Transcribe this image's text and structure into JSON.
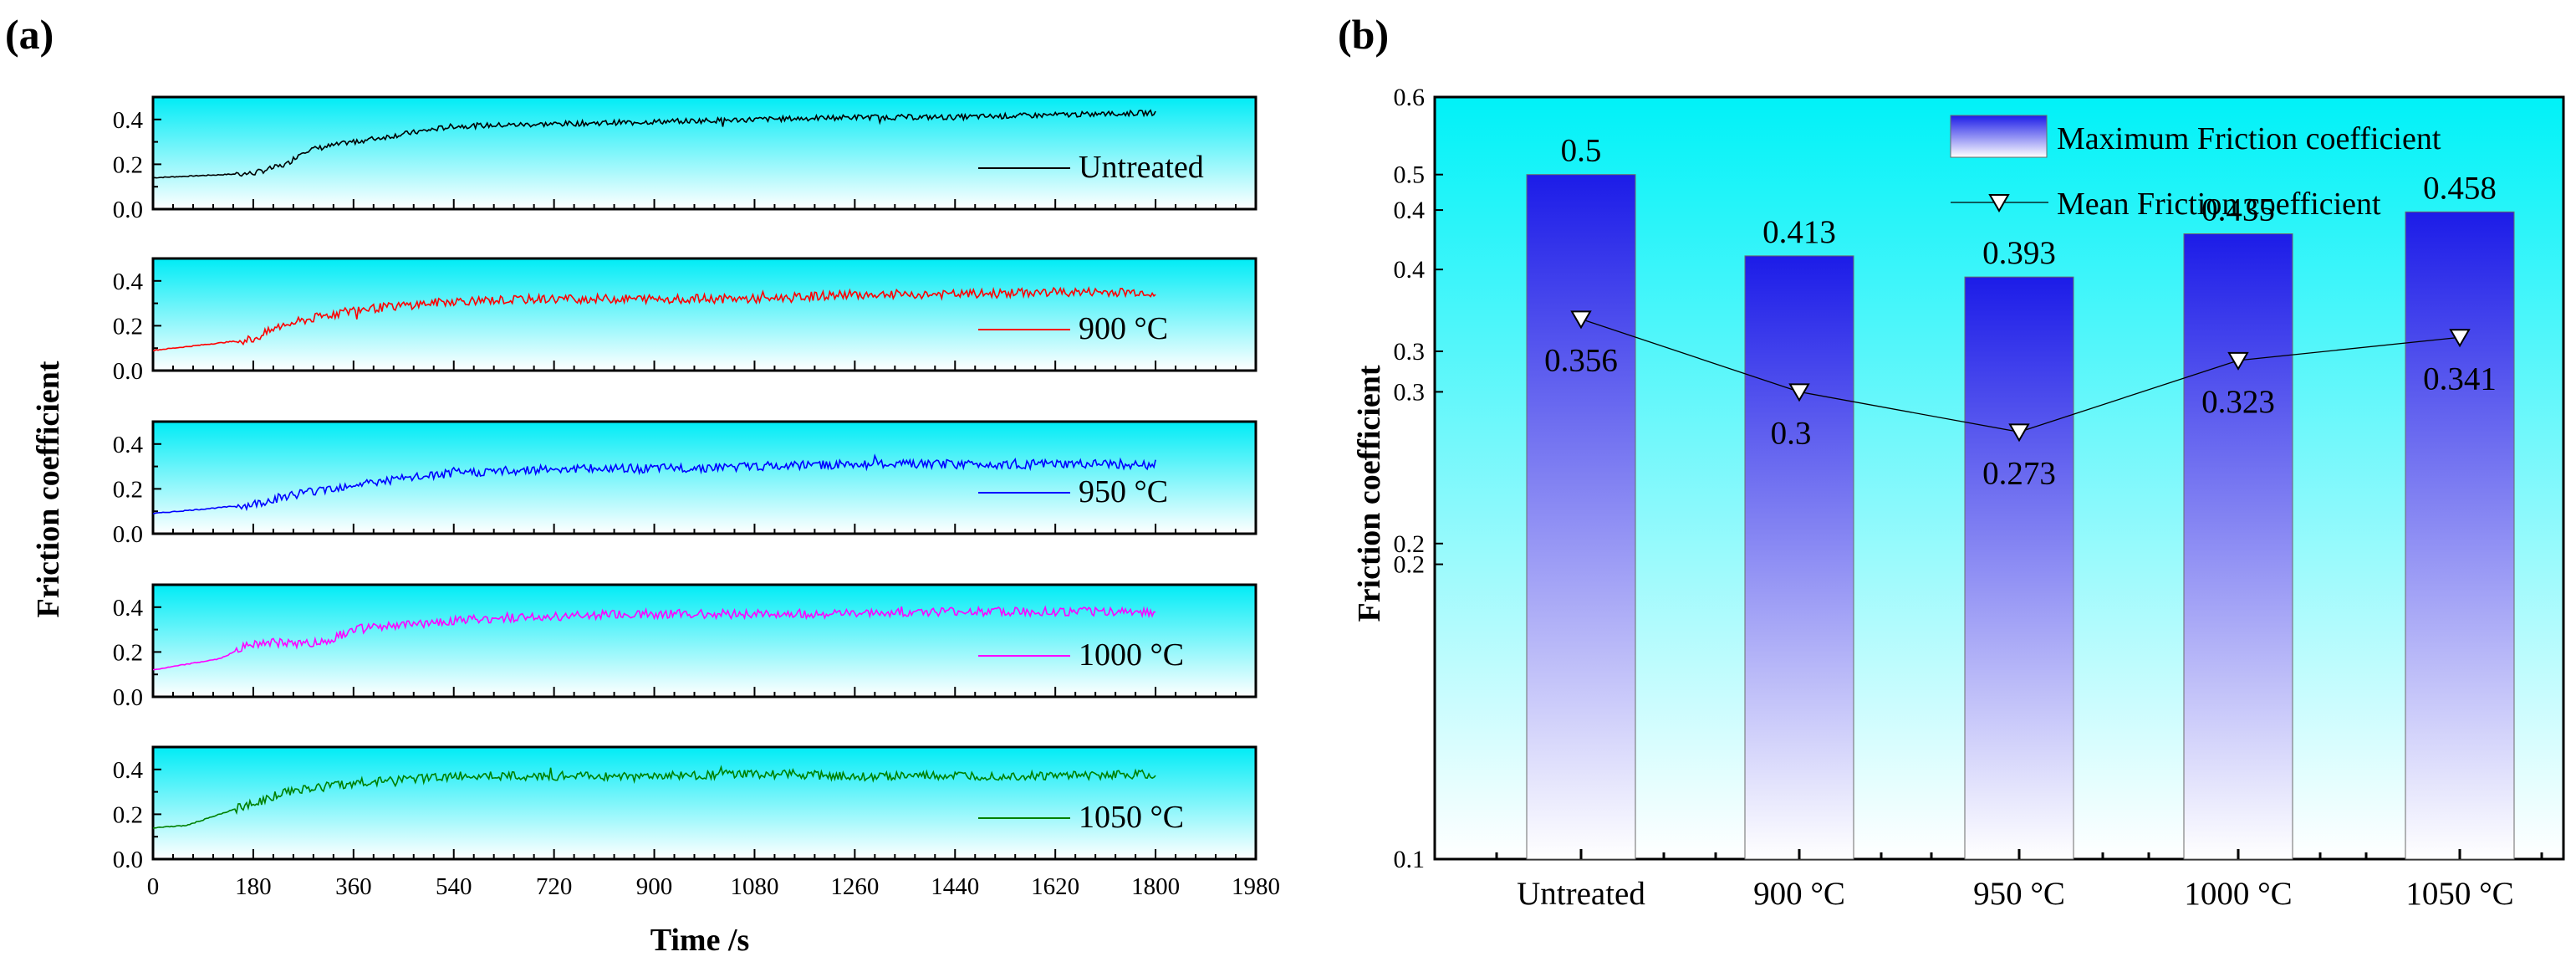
{
  "panels": {
    "a": {
      "letter": "(a)"
    },
    "b": {
      "letter": "(b)"
    }
  },
  "chart_data": [
    {
      "type": "line",
      "panel": "(a)",
      "xlabel": "Time /s",
      "ylabel": "Friction coefficient",
      "xlim": [
        0,
        1980
      ],
      "xticks": [
        0,
        180,
        360,
        540,
        720,
        900,
        1080,
        1260,
        1440,
        1620,
        1800,
        1980
      ],
      "ylim": [
        0,
        0.5
      ],
      "yticks": [
        "0.0",
        "0.2",
        "0.4"
      ],
      "grid": false,
      "background": "cyan gradient",
      "series": [
        {
          "name": "Untreated",
          "color": "#000000",
          "x": [
            0,
            180,
            240,
            270,
            360,
            540,
            720,
            900,
            1080,
            1260,
            1440,
            1620,
            1800
          ],
          "y": [
            0.14,
            0.16,
            0.2,
            0.26,
            0.3,
            0.37,
            0.38,
            0.39,
            0.4,
            0.41,
            0.41,
            0.42,
            0.43
          ]
        },
        {
          "name": "900 °C",
          "color": "#ff0000",
          "x": [
            0,
            180,
            230,
            300,
            360,
            540,
            720,
            900,
            1080,
            1260,
            1440,
            1620,
            1800
          ],
          "y": [
            0.09,
            0.14,
            0.2,
            0.24,
            0.27,
            0.31,
            0.32,
            0.32,
            0.32,
            0.34,
            0.34,
            0.35,
            0.35
          ]
        },
        {
          "name": "950 °C",
          "color": "#0000ff",
          "x": [
            0,
            180,
            240,
            360,
            540,
            720,
            900,
            1080,
            1260,
            1440,
            1620,
            1800
          ],
          "y": [
            0.09,
            0.13,
            0.17,
            0.22,
            0.27,
            0.29,
            0.29,
            0.3,
            0.31,
            0.31,
            0.31,
            0.31
          ]
        },
        {
          "name": "1000 °C",
          "color": "#ff00ff",
          "x": [
            0,
            120,
            180,
            300,
            360,
            540,
            720,
            900,
            1080,
            1260,
            1440,
            1620,
            1800
          ],
          "y": [
            0.12,
            0.17,
            0.24,
            0.24,
            0.3,
            0.34,
            0.36,
            0.37,
            0.37,
            0.37,
            0.38,
            0.38,
            0.38
          ]
        },
        {
          "name": "1050 °C",
          "color": "#008000",
          "x": [
            0,
            60,
            180,
            240,
            360,
            540,
            720,
            900,
            1080,
            1260,
            1440,
            1620,
            1800
          ],
          "y": [
            0.14,
            0.15,
            0.25,
            0.3,
            0.34,
            0.37,
            0.37,
            0.37,
            0.38,
            0.37,
            0.37,
            0.37,
            0.38
          ]
        }
      ]
    },
    {
      "type": "bar",
      "panel": "(b)",
      "ylabel": "Friction coefficient",
      "yscale": "log",
      "ylim": [
        0.1,
        0.6
      ],
      "yticks": [
        "0.1",
        "0.2",
        "0.2",
        "0.3",
        "0.3",
        "0.4",
        "0.4",
        "0.5",
        "0.6"
      ],
      "ytick_values": [
        0.1,
        0.2,
        0.21,
        0.3,
        0.33,
        0.4,
        0.46,
        0.5,
        0.6
      ],
      "categories": [
        "Untreated",
        "900 °C",
        "950 °C",
        "1000 °C",
        "1050 °C"
      ],
      "legend_position": "top-right",
      "background": "cyan gradient",
      "series": [
        {
          "name": "Maximum Friction coefficient",
          "kind": "bar",
          "color": "#2020ee",
          "values": [
            0.5,
            0.413,
            0.393,
            0.435,
            0.458
          ],
          "labels": [
            "0.5",
            "0.413",
            "0.393",
            "0.435",
            "0.458"
          ]
        },
        {
          "name": "Mean Friction coefficient",
          "kind": "line-marker",
          "color": "#000000",
          "values": [
            0.356,
            0.3,
            0.273,
            0.323,
            0.341
          ],
          "labels": [
            "0.356",
            "0.3",
            "0.273",
            "0.323",
            "0.341"
          ]
        }
      ]
    }
  ]
}
